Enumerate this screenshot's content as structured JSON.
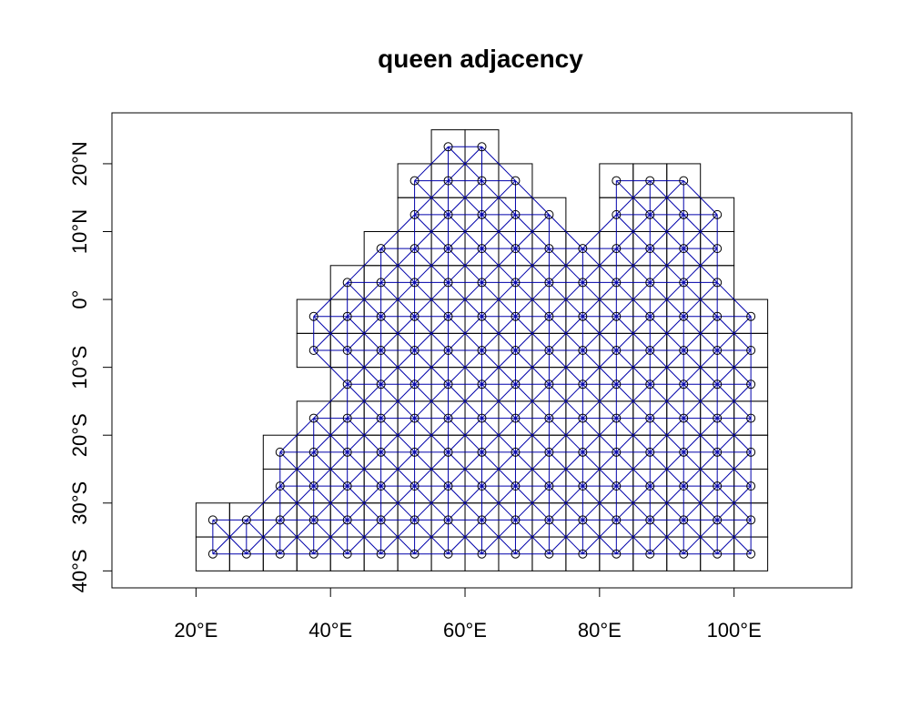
{
  "chart_data": {
    "type": "scatter",
    "title": "queen adjacency",
    "xlabel": "",
    "ylabel": "",
    "xlim": [
      7.5,
      117.5
    ],
    "ylim": [
      -42.5,
      27.5
    ],
    "grid": false,
    "cell_size": 5,
    "x_ticks": [
      {
        "value": 20,
        "label": "20°E"
      },
      {
        "value": 40,
        "label": "40°E"
      },
      {
        "value": 60,
        "label": "60°E"
      },
      {
        "value": 80,
        "label": "80°E"
      },
      {
        "value": 100,
        "label": "100°E"
      }
    ],
    "y_ticks": [
      {
        "value": 20,
        "label": "20°N"
      },
      {
        "value": 10,
        "label": "10°N"
      },
      {
        "value": 0,
        "label": "0°"
      },
      {
        "value": -10,
        "label": "10°S"
      },
      {
        "value": -20,
        "label": "20°S"
      },
      {
        "value": -30,
        "label": "30°S"
      },
      {
        "value": -40,
        "label": "40°S"
      }
    ],
    "rows": [
      {
        "y": 22.5,
        "x": [
          57.5,
          62.5
        ]
      },
      {
        "y": 17.5,
        "x": [
          52.5,
          57.5,
          62.5,
          67.5,
          82.5,
          87.5,
          92.5
        ]
      },
      {
        "y": 12.5,
        "x": [
          52.5,
          57.5,
          62.5,
          67.5,
          72.5,
          82.5,
          87.5,
          92.5,
          97.5
        ]
      },
      {
        "y": 7.5,
        "x": [
          47.5,
          52.5,
          57.5,
          62.5,
          67.5,
          72.5,
          77.5,
          82.5,
          87.5,
          92.5,
          97.5
        ]
      },
      {
        "y": 2.5,
        "x": [
          42.5,
          47.5,
          52.5,
          57.5,
          62.5,
          67.5,
          72.5,
          77.5,
          82.5,
          87.5,
          92.5,
          97.5
        ]
      },
      {
        "y": -2.5,
        "x": [
          37.5,
          42.5,
          47.5,
          52.5,
          57.5,
          62.5,
          67.5,
          72.5,
          77.5,
          82.5,
          87.5,
          92.5,
          97.5,
          102.5
        ]
      },
      {
        "y": -7.5,
        "x": [
          37.5,
          42.5,
          47.5,
          52.5,
          57.5,
          62.5,
          67.5,
          72.5,
          77.5,
          82.5,
          87.5,
          92.5,
          97.5,
          102.5
        ]
      },
      {
        "y": -12.5,
        "x": [
          42.5,
          47.5,
          52.5,
          57.5,
          62.5,
          67.5,
          72.5,
          77.5,
          82.5,
          87.5,
          92.5,
          97.5,
          102.5
        ]
      },
      {
        "y": -17.5,
        "x": [
          37.5,
          42.5,
          47.5,
          52.5,
          57.5,
          62.5,
          67.5,
          72.5,
          77.5,
          82.5,
          87.5,
          92.5,
          97.5,
          102.5
        ]
      },
      {
        "y": -22.5,
        "x": [
          32.5,
          37.5,
          42.5,
          47.5,
          52.5,
          57.5,
          62.5,
          67.5,
          72.5,
          77.5,
          82.5,
          87.5,
          92.5,
          97.5,
          102.5
        ]
      },
      {
        "y": -27.5,
        "x": [
          32.5,
          37.5,
          42.5,
          47.5,
          52.5,
          57.5,
          62.5,
          67.5,
          72.5,
          77.5,
          82.5,
          87.5,
          92.5,
          97.5,
          102.5
        ]
      },
      {
        "y": -32.5,
        "x": [
          22.5,
          27.5,
          32.5,
          37.5,
          42.5,
          47.5,
          52.5,
          57.5,
          62.5,
          67.5,
          72.5,
          77.5,
          82.5,
          87.5,
          92.5,
          97.5,
          102.5
        ]
      },
      {
        "y": -37.5,
        "x": [
          22.5,
          27.5,
          32.5,
          37.5,
          42.5,
          47.5,
          52.5,
          57.5,
          62.5,
          67.5,
          72.5,
          77.5,
          82.5,
          87.5,
          92.5,
          97.5,
          102.5
        ]
      }
    ],
    "colors": {
      "cell_border": "#000000",
      "edge": "#0000aa",
      "point": "#000000"
    }
  }
}
